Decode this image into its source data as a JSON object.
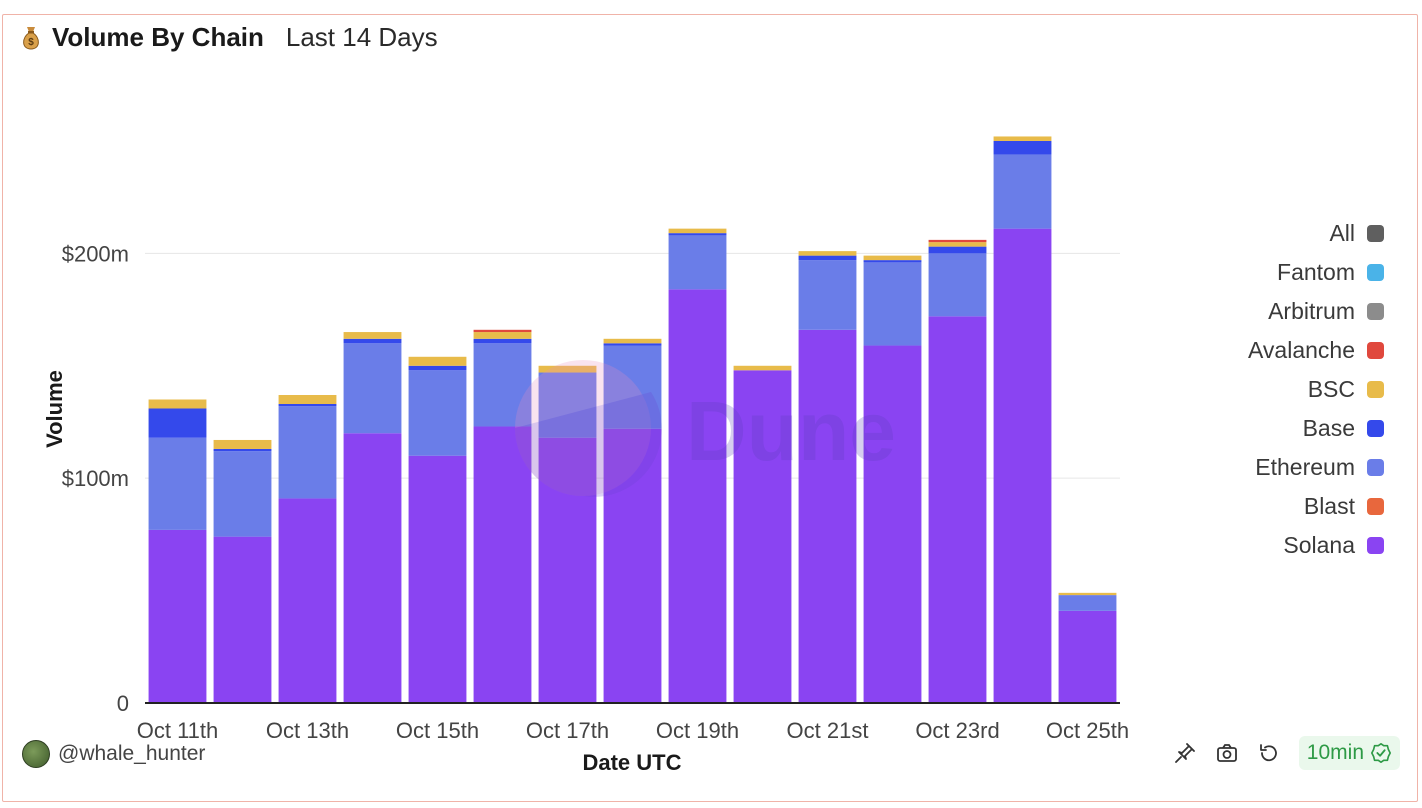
{
  "header": {
    "icon": "money-bag-icon",
    "title": "Volume By Chain",
    "subtitle": "Last 14 Days"
  },
  "watermark": "Dune",
  "legend": [
    {
      "label": "All",
      "color": "#5f5f5f"
    },
    {
      "label": "Fantom",
      "color": "#4ab3e8"
    },
    {
      "label": "Arbitrum",
      "color": "#8c8c8c"
    },
    {
      "label": "Avalanche",
      "color": "#e0483d"
    },
    {
      "label": "BSC",
      "color": "#e8bb4a"
    },
    {
      "label": "Base",
      "color": "#3449eb"
    },
    {
      "label": "Ethereum",
      "color": "#6a7de8"
    },
    {
      "label": "Blast",
      "color": "#e8673d"
    },
    {
      "label": "Solana",
      "color": "#8a44f2"
    }
  ],
  "footer": {
    "username": "@whale_hunter",
    "refresh_label": "10min",
    "icons": [
      "pin-icon",
      "camera-icon",
      "undo-icon",
      "check-circle-icon"
    ]
  },
  "chart_data": {
    "type": "bar",
    "stacked": true,
    "xlabel": "Date UTC",
    "ylabel": "Volume",
    "ylim": [
      0,
      270
    ],
    "yticks": [
      {
        "value": 0,
        "label": "0"
      },
      {
        "value": 100,
        "label": "$100m"
      },
      {
        "value": 200,
        "label": "$200m"
      }
    ],
    "categories": [
      "Oct 11th",
      "Oct 12th",
      "Oct 13th",
      "Oct 14th",
      "Oct 15th",
      "Oct 16th",
      "Oct 17th",
      "Oct 18th",
      "Oct 19th",
      "Oct 20th",
      "Oct 21st",
      "Oct 22nd",
      "Oct 23rd",
      "Oct 24th",
      "Oct 25th"
    ],
    "xtick_labels": [
      "Oct 11th",
      "Oct 13th",
      "Oct 15th",
      "Oct 17th",
      "Oct 19th",
      "Oct 21st",
      "Oct 23rd",
      "Oct 25th"
    ],
    "unit": "$m",
    "grid": true,
    "legend_position": "right",
    "series": [
      {
        "name": "Solana",
        "color": "#8a44f2",
        "values": [
          77,
          74,
          91,
          120,
          110,
          123,
          118,
          122,
          184,
          148,
          166,
          159,
          172,
          211,
          41
        ]
      },
      {
        "name": "Blast",
        "color": "#e8673d",
        "values": [
          0,
          0,
          0,
          0,
          0,
          0,
          0,
          0,
          0,
          0,
          0,
          0,
          0,
          0,
          0
        ]
      },
      {
        "name": "Ethereum",
        "color": "#6a7de8",
        "values": [
          41,
          38,
          41,
          40,
          38,
          37,
          29,
          37,
          24,
          0,
          31,
          37,
          28,
          33,
          7
        ]
      },
      {
        "name": "Base",
        "color": "#3449eb",
        "values": [
          13,
          1,
          1,
          2,
          2,
          2,
          0,
          1,
          1,
          0,
          2,
          1,
          3,
          6,
          0
        ]
      },
      {
        "name": "BSC",
        "color": "#e8bb4a",
        "values": [
          4,
          4,
          4,
          3,
          4,
          3,
          3,
          2,
          2,
          2,
          2,
          2,
          2,
          2,
          1
        ]
      },
      {
        "name": "Avalanche",
        "color": "#e0483d",
        "values": [
          0,
          0,
          0,
          0,
          0,
          1,
          0,
          0,
          0,
          0,
          0,
          0,
          1,
          0,
          0
        ]
      },
      {
        "name": "Arbitrum",
        "color": "#8c8c8c",
        "values": [
          0,
          0,
          0,
          0,
          0,
          0,
          0,
          0,
          0,
          0,
          0,
          0,
          0,
          0,
          0
        ]
      },
      {
        "name": "Fantom",
        "color": "#4ab3e8",
        "values": [
          0,
          0,
          0,
          0,
          0,
          0,
          0,
          0,
          0,
          0,
          0,
          0,
          0,
          0,
          0
        ]
      }
    ]
  }
}
